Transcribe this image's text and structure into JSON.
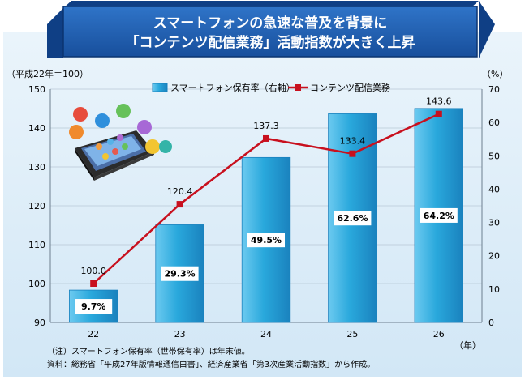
{
  "chart_data": {
    "type": "bar+line",
    "title_line1": "スマートフォンの急速な普及を背景に",
    "title_line2": "「コンテンツ配信業務」活動指数が大きく上昇",
    "left_axis_unit": "（平成22年＝100）",
    "right_axis_unit": "（%）",
    "x_axis_unit": "（年）",
    "categories": [
      "22",
      "23",
      "24",
      "25",
      "26"
    ],
    "left_axis": {
      "min": 90,
      "max": 150,
      "ticks": [
        90,
        100,
        110,
        120,
        130,
        140,
        150
      ]
    },
    "right_axis": {
      "min": 0,
      "max": 70,
      "ticks": [
        0,
        10,
        20,
        30,
        40,
        50,
        60,
        70
      ]
    },
    "series": [
      {
        "name": "スマートフォン保有率（右軸）",
        "type": "bar",
        "axis": "right",
        "values": [
          9.7,
          29.3,
          49.5,
          62.6,
          64.2
        ],
        "labels": [
          "9.7%",
          "29.3%",
          "49.5%",
          "62.6%",
          "64.2%"
        ],
        "color": "#29a8dc"
      },
      {
        "name": "コンテンツ配信業務",
        "type": "line",
        "axis": "left",
        "values": [
          100.0,
          120.4,
          137.3,
          133.4,
          143.6
        ],
        "labels": [
          "100.0",
          "120.4",
          "137.3",
          "133.4",
          "143.6"
        ],
        "color": "#c8101e"
      }
    ],
    "notes": [
      "（注）スマートフォン保有率（世帯保有率）は年末値。",
      "資料：総務省「平成27年版情報通信白書」、経済産業省「第3次産業活動指数」から作成。"
    ],
    "colors": {
      "banner": "#1f5fb0",
      "banner_border": "#0f3f85",
      "plot_bg": "#dfeef9",
      "line": "#c8101e",
      "bar": "#29a8dc"
    }
  }
}
